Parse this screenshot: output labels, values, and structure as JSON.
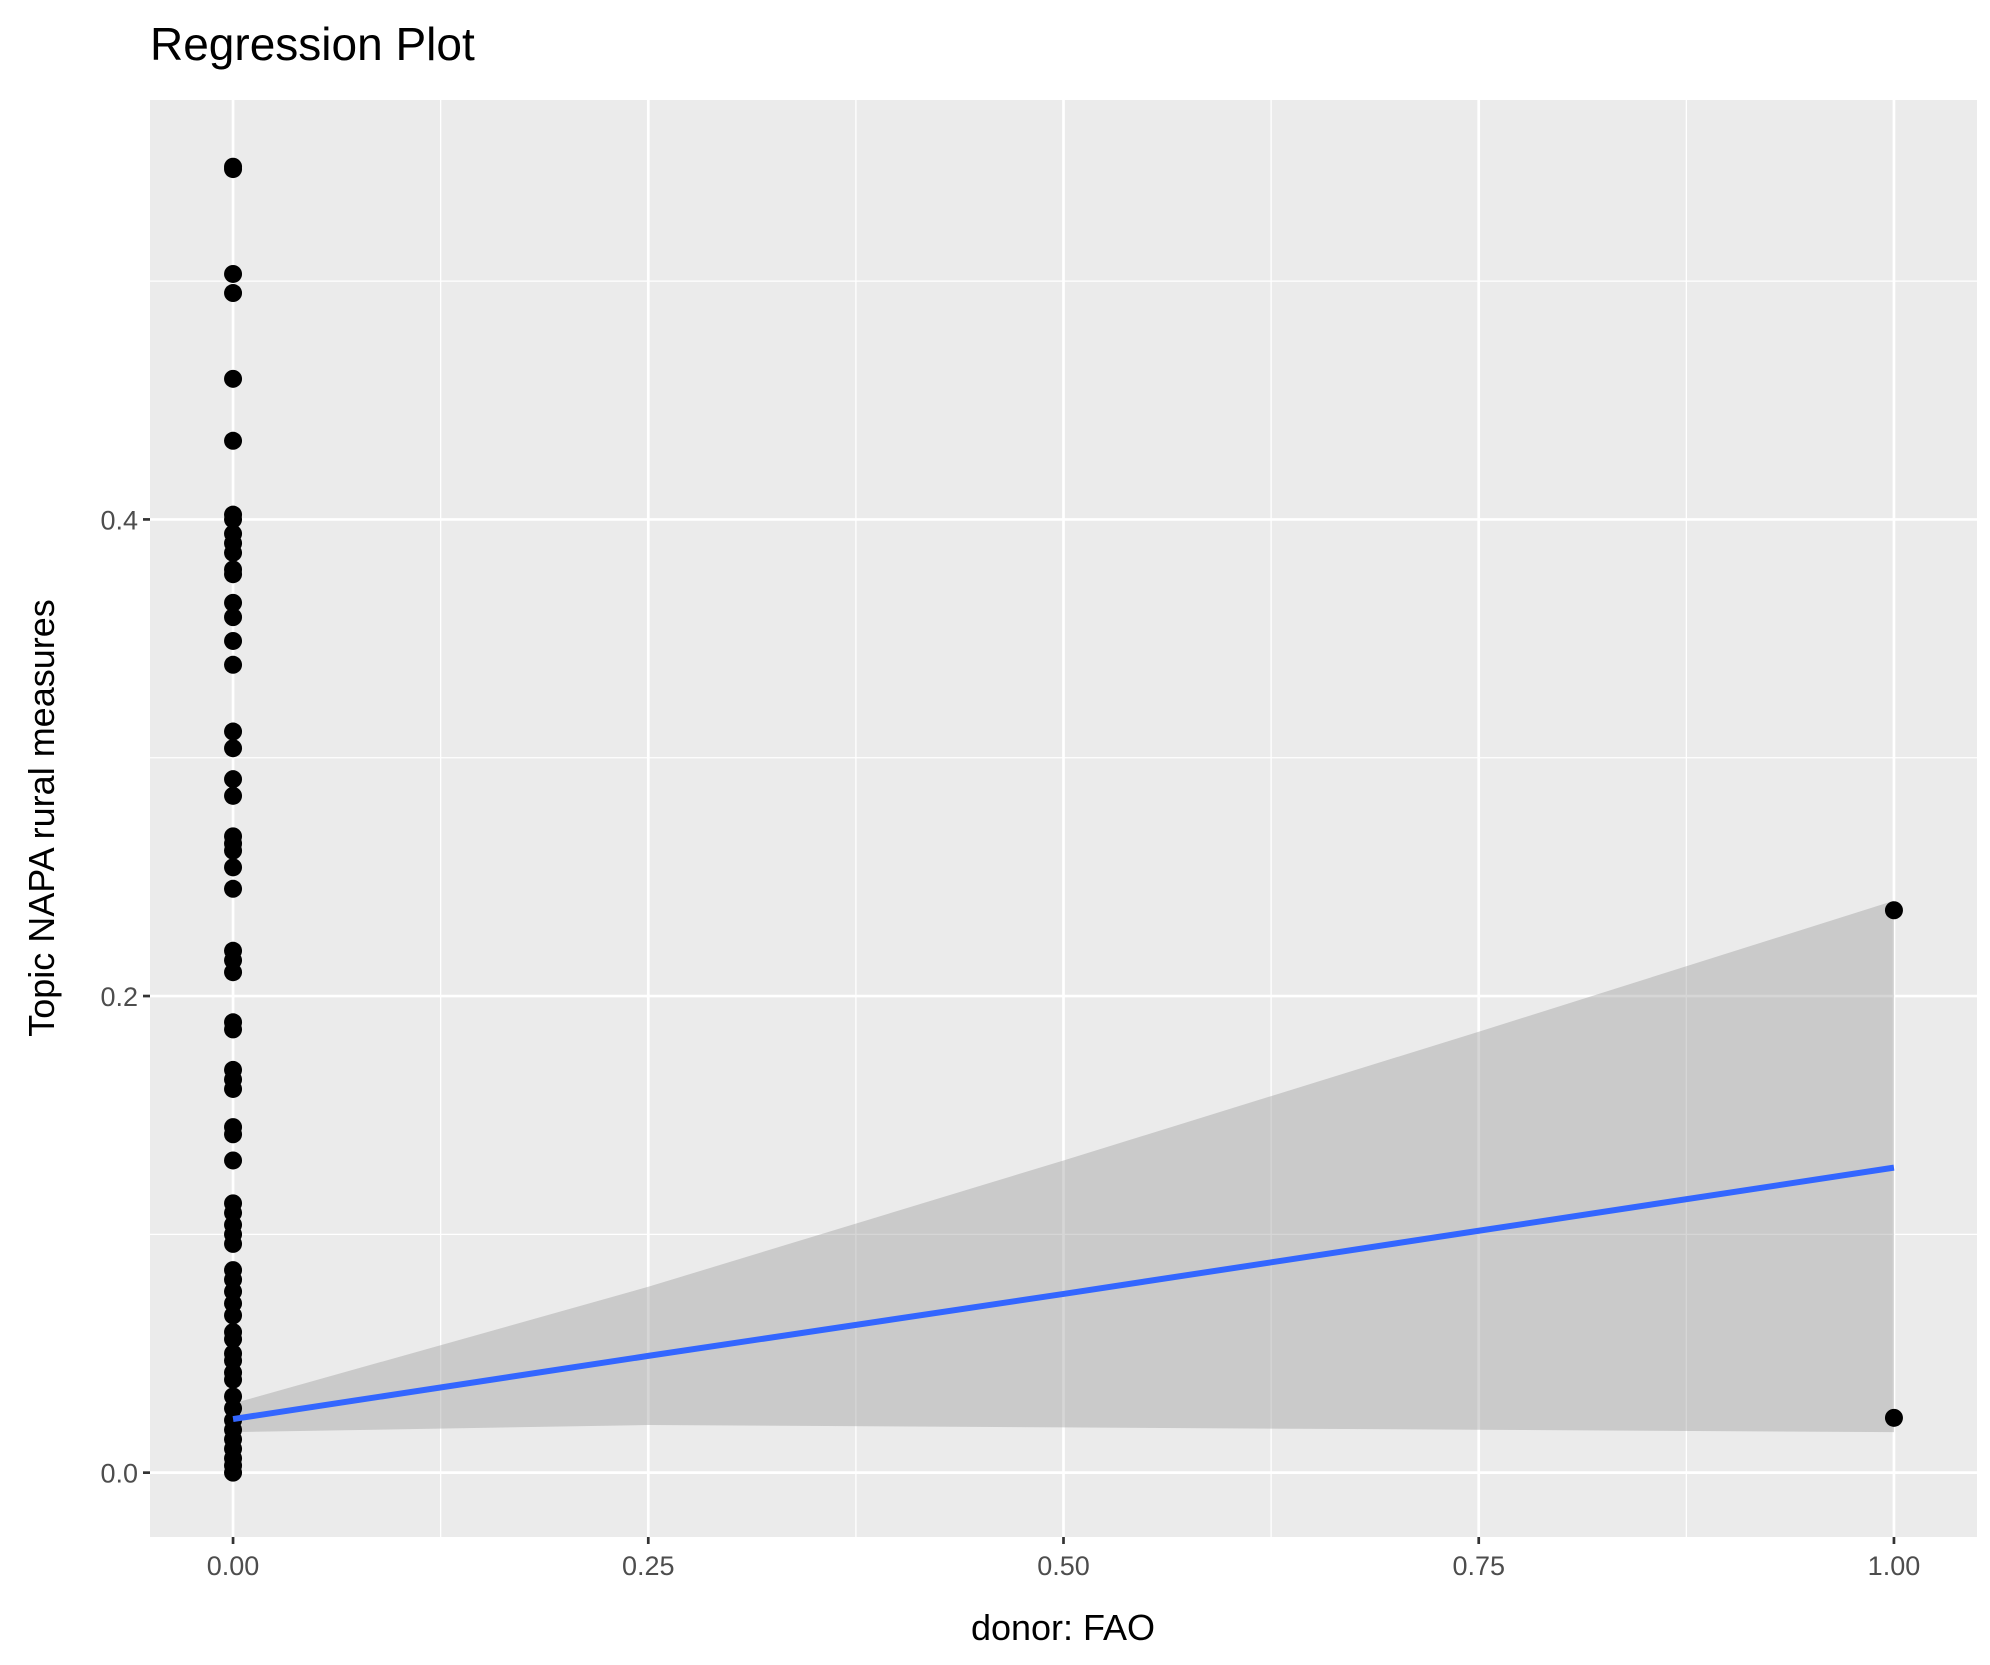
{
  "chart_data": {
    "type": "scatter",
    "title": "Regression Plot",
    "xlabel": "donor: FAO",
    "ylabel": "Topic NAPA rural measures",
    "xlim": [
      -0.05,
      1.05
    ],
    "ylim": [
      -0.027,
      0.576
    ],
    "grid": true,
    "xticks": [
      0,
      0.25,
      0.5,
      0.75,
      1
    ],
    "xtick_labels": [
      "0.00",
      "0.25",
      "0.50",
      "0.75",
      "1.00"
    ],
    "yticks": [
      0,
      0.2,
      0.4
    ],
    "ytick_labels": [
      "0.0",
      "0.2",
      "0.4"
    ],
    "points": {
      "x0": [
        0.548,
        0.547,
        0.503,
        0.495,
        0.459,
        0.433,
        0.402,
        0.4,
        0.394,
        0.39,
        0.386,
        0.379,
        0.377,
        0.365,
        0.359,
        0.349,
        0.339,
        0.311,
        0.304,
        0.291,
        0.284,
        0.267,
        0.264,
        0.261,
        0.254,
        0.245,
        0.219,
        0.215,
        0.21,
        0.189,
        0.186,
        0.169,
        0.165,
        0.161,
        0.145,
        0.142,
        0.131,
        0.113,
        0.109,
        0.104,
        0.1,
        0.096,
        0.085,
        0.081,
        0.076,
        0.071,
        0.066,
        0.059,
        0.056,
        0.05,
        0.047,
        0.042,
        0.039,
        0.032,
        0.027,
        0.022,
        0.018,
        0.014,
        0.01,
        0.006,
        0.003,
        0.0
      ],
      "x1": [
        0.236,
        0.023
      ]
    },
    "regression": {
      "x": [
        0,
        0.25,
        0.5,
        0.75,
        1
      ],
      "fit": [
        0.0225,
        0.049,
        0.075,
        0.1015,
        0.128
      ],
      "lower": [
        0.017,
        0.02,
        0.019,
        0.018,
        0.017
      ],
      "upper": [
        0.029,
        0.078,
        0.131,
        0.185,
        0.24
      ]
    },
    "colors": {
      "panel": "#ebebeb",
      "grid": "#ffffff",
      "point": "#000000",
      "line": "#3366ff",
      "ribbon": "#999999"
    }
  }
}
